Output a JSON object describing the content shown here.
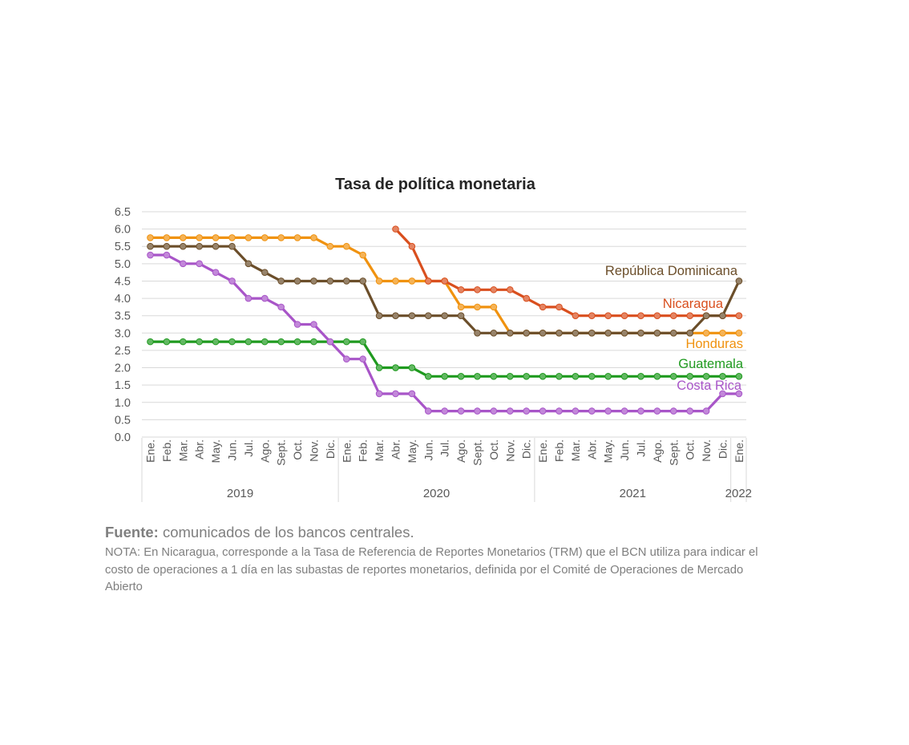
{
  "colors": {
    "dominicana": "#6b4e2a",
    "nicaragua": "#d94f1e",
    "honduras": "#f0920f",
    "guatemala": "#1f9a1f",
    "costa_rica": "#a855c8",
    "grid": "#d9d9d9",
    "text": "#595959"
  },
  "chart_data": {
    "type": "line",
    "title": "Tasa de política monetaria",
    "ylim": [
      0,
      6.5
    ],
    "yticks": [
      "0.0",
      "0.5",
      "1.0",
      "1.5",
      "2.0",
      "2.5",
      "3.0",
      "3.5",
      "4.0",
      "4.5",
      "5.0",
      "5.5",
      "6.0",
      "6.5"
    ],
    "grid": "horizontal",
    "categories": [
      "Ene.",
      "Feb.",
      "Mar.",
      "Abr.",
      "May.",
      "Jun.",
      "Jul.",
      "Ago.",
      "Sept.",
      "Oct.",
      "Nov.",
      "Dic.",
      "Ene.",
      "Feb.",
      "Mar.",
      "Abr.",
      "May.",
      "Jun.",
      "Jul.",
      "Ago.",
      "Sept.",
      "Oct.",
      "Nov.",
      "Dic.",
      "Ene.",
      "Feb.",
      "Mar.",
      "Abr.",
      "May.",
      "Jun.",
      "Jul.",
      "Ago.",
      "Sept.",
      "Oct.",
      "Nov.",
      "Dic.",
      "Ene."
    ],
    "years": [
      {
        "label": "2019",
        "start": 0,
        "end": 11
      },
      {
        "label": "2020",
        "start": 12,
        "end": 23
      },
      {
        "label": "2021",
        "start": 24,
        "end": 35
      },
      {
        "label": "2022",
        "start": 36,
        "end": 36
      }
    ],
    "series": [
      {
        "name": "Honduras",
        "color_key": "honduras",
        "values": [
          5.75,
          5.75,
          5.75,
          5.75,
          5.75,
          5.75,
          5.75,
          5.75,
          5.75,
          5.75,
          5.75,
          5.5,
          5.5,
          5.25,
          4.5,
          4.5,
          4.5,
          4.5,
          4.5,
          3.75,
          3.75,
          3.75,
          3.0,
          3.0,
          3.0,
          3.0,
          3.0,
          3.0,
          3.0,
          3.0,
          3.0,
          3.0,
          3.0,
          3.0,
          3.0,
          3.0,
          3.0
        ]
      },
      {
        "name": "Nicaragua",
        "color_key": "nicaragua",
        "values": [
          null,
          null,
          null,
          null,
          null,
          null,
          null,
          null,
          null,
          null,
          null,
          null,
          null,
          null,
          null,
          6.0,
          5.5,
          4.5,
          4.5,
          4.25,
          4.25,
          4.25,
          4.25,
          4.0,
          3.75,
          3.75,
          3.5,
          3.5,
          3.5,
          3.5,
          3.5,
          3.5,
          3.5,
          3.5,
          3.5,
          3.5,
          3.5
        ]
      },
      {
        "name": "República Dominicana",
        "color_key": "dominicana",
        "values": [
          5.5,
          5.5,
          5.5,
          5.5,
          5.5,
          5.5,
          5.0,
          4.75,
          4.5,
          4.5,
          4.5,
          4.5,
          4.5,
          4.5,
          3.5,
          3.5,
          3.5,
          3.5,
          3.5,
          3.5,
          3.0,
          3.0,
          3.0,
          3.0,
          3.0,
          3.0,
          3.0,
          3.0,
          3.0,
          3.0,
          3.0,
          3.0,
          3.0,
          3.0,
          3.5,
          3.5,
          4.5
        ]
      },
      {
        "name": "Guatemala",
        "color_key": "guatemala",
        "values": [
          2.75,
          2.75,
          2.75,
          2.75,
          2.75,
          2.75,
          2.75,
          2.75,
          2.75,
          2.75,
          2.75,
          2.75,
          2.75,
          2.75,
          2.0,
          2.0,
          2.0,
          1.75,
          1.75,
          1.75,
          1.75,
          1.75,
          1.75,
          1.75,
          1.75,
          1.75,
          1.75,
          1.75,
          1.75,
          1.75,
          1.75,
          1.75,
          1.75,
          1.75,
          1.75,
          1.75,
          1.75
        ]
      },
      {
        "name": "Costa Rica",
        "color_key": "costa_rica",
        "values": [
          5.25,
          5.25,
          5.0,
          5.0,
          4.75,
          4.5,
          4.0,
          4.0,
          3.75,
          3.25,
          3.25,
          2.75,
          2.25,
          2.25,
          1.25,
          1.25,
          1.25,
          0.75,
          0.75,
          0.75,
          0.75,
          0.75,
          0.75,
          0.75,
          0.75,
          0.75,
          0.75,
          0.75,
          0.75,
          0.75,
          0.75,
          0.75,
          0.75,
          0.75,
          0.75,
          1.25,
          1.25
        ]
      }
    ],
    "draw_order": [
      "Honduras",
      "Nicaragua",
      "República Dominicana",
      "Guatemala",
      "Costa Rica"
    ]
  },
  "footer": {
    "source_bold": "Fuente:",
    "source_text": " comunicados de los bancos centrales.",
    "note": "NOTA: En Nicaragua, corresponde a la Tasa de Referencia de Reportes Monetarios (TRM) que el BCN utiliza para indicar el costo de operaciones a 1 día en las subastas de reportes monetarios, definida por el Comité de Operaciones de Mercado Abierto"
  }
}
